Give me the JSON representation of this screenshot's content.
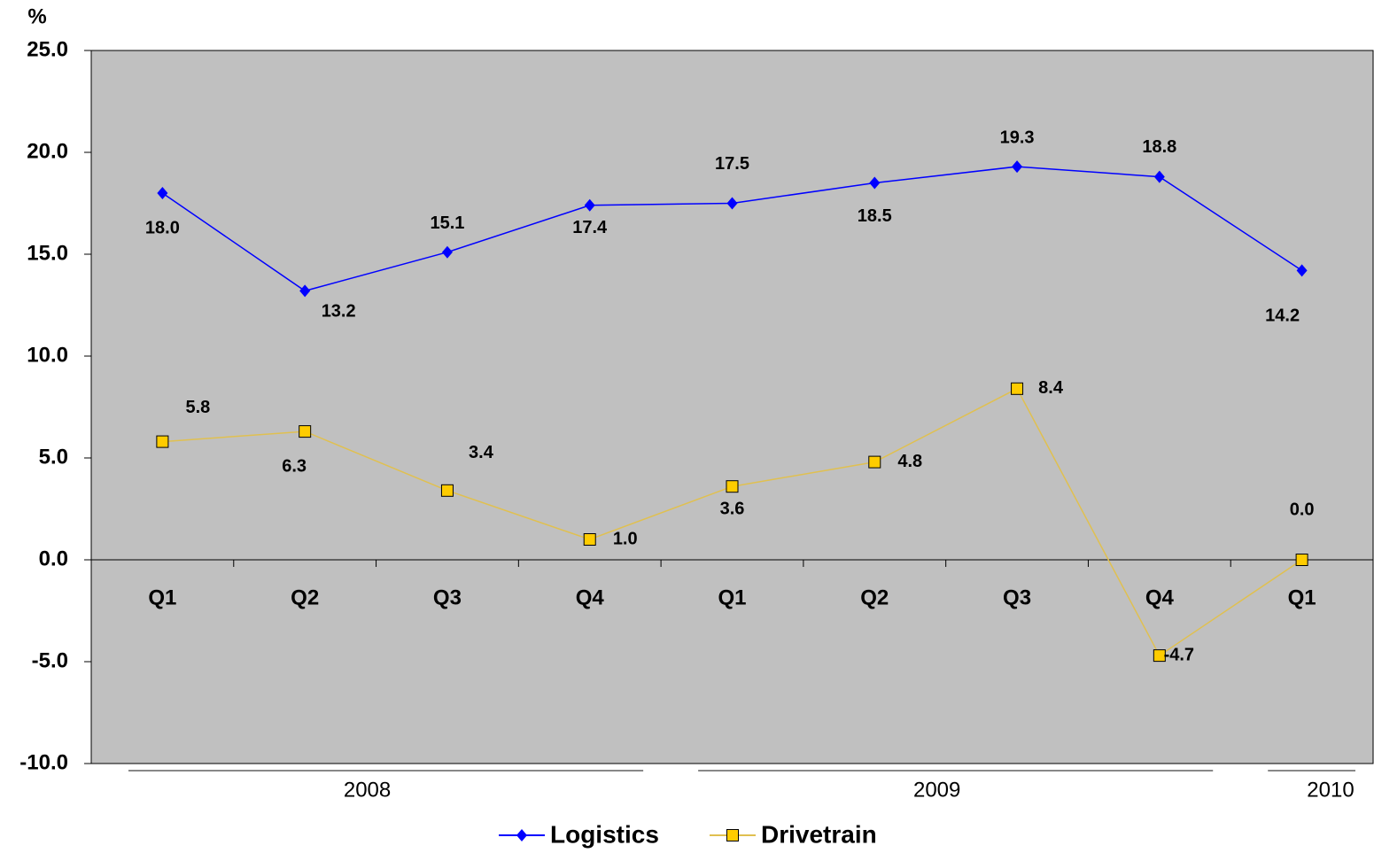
{
  "chart_data": {
    "type": "line",
    "y_label": "%",
    "categories": [
      "Q1",
      "Q2",
      "Q3",
      "Q4",
      "Q1",
      "Q2",
      "Q3",
      "Q4",
      "Q1"
    ],
    "groups": [
      {
        "name": "2008",
        "size": 4
      },
      {
        "name": "2009",
        "size": 4
      },
      {
        "name": "2010",
        "size": 1
      }
    ],
    "series": [
      {
        "name": "Logistics",
        "color": "#0000ff",
        "marker": "diamond",
        "values": [
          18.0,
          13.2,
          15.1,
          17.4,
          17.5,
          18.5,
          19.3,
          18.8,
          14.2
        ],
        "value_labels": [
          "18.0",
          "13.2",
          "15.1",
          "17.4",
          "17.5",
          "18.5",
          "19.3",
          "18.8",
          "14.2"
        ]
      },
      {
        "name": "Drivetrain",
        "color": "#e0c050",
        "marker_color": "#ffcc00",
        "marker": "square",
        "values": [
          5.8,
          6.3,
          3.4,
          1.0,
          3.6,
          4.8,
          8.4,
          -4.7,
          0.0
        ],
        "value_labels": [
          "5.8",
          "6.3",
          "3.4",
          "1.0",
          "3.6",
          "4.8",
          "8.4",
          "-4.7",
          "0.0"
        ]
      }
    ],
    "ylim": [
      -10,
      25
    ],
    "yticks": [
      {
        "value": -10,
        "label": "-10.0"
      },
      {
        "value": -5,
        "label": "-5.0"
      },
      {
        "value": 0,
        "label": "0.0"
      },
      {
        "value": 5,
        "label": "5.0"
      },
      {
        "value": 10,
        "label": "10.0"
      },
      {
        "value": 15,
        "label": "15.0"
      },
      {
        "value": 20,
        "label": "20.0"
      },
      {
        "value": 25,
        "label": "25.0"
      }
    ],
    "plot_background": "#c0c0c0",
    "legend": "bottom"
  }
}
